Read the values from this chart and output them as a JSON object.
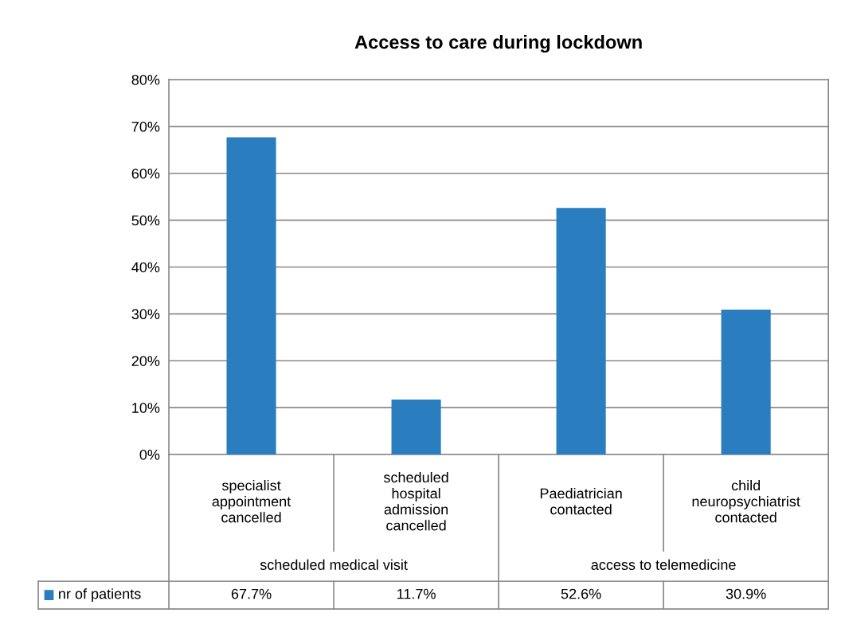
{
  "chart_data": {
    "type": "bar",
    "title": "Access to care during lockdown",
    "categories": [
      "specialist appointment cancelled",
      "scheduled hospital admission cancelled",
      "Paediatrician contacted",
      "child neuropsychiatrist contacted"
    ],
    "series": [
      {
        "name": "nr of patients",
        "color": "#2a7dbf",
        "values": [
          67.7,
          11.7,
          52.6,
          30.9
        ],
        "value_labels": [
          "67.7%",
          "11.7%",
          "52.6%",
          "30.9%"
        ]
      }
    ],
    "annotations": [
      "scheduled medical visit",
      "access to telemedicine"
    ],
    "ylim": [
      0,
      80
    ],
    "yticks": [
      {
        "value": 0,
        "label": "0%"
      },
      {
        "value": 10,
        "label": "10%"
      },
      {
        "value": 20,
        "label": "20%"
      },
      {
        "value": 30,
        "label": "30%"
      },
      {
        "value": 40,
        "label": "40%"
      },
      {
        "value": 50,
        "label": "50%"
      },
      {
        "value": 60,
        "label": "60%"
      },
      {
        "value": 70,
        "label": "70%"
      },
      {
        "value": 80,
        "label": "80%"
      }
    ],
    "grid": "y",
    "legend": "bottom left"
  }
}
